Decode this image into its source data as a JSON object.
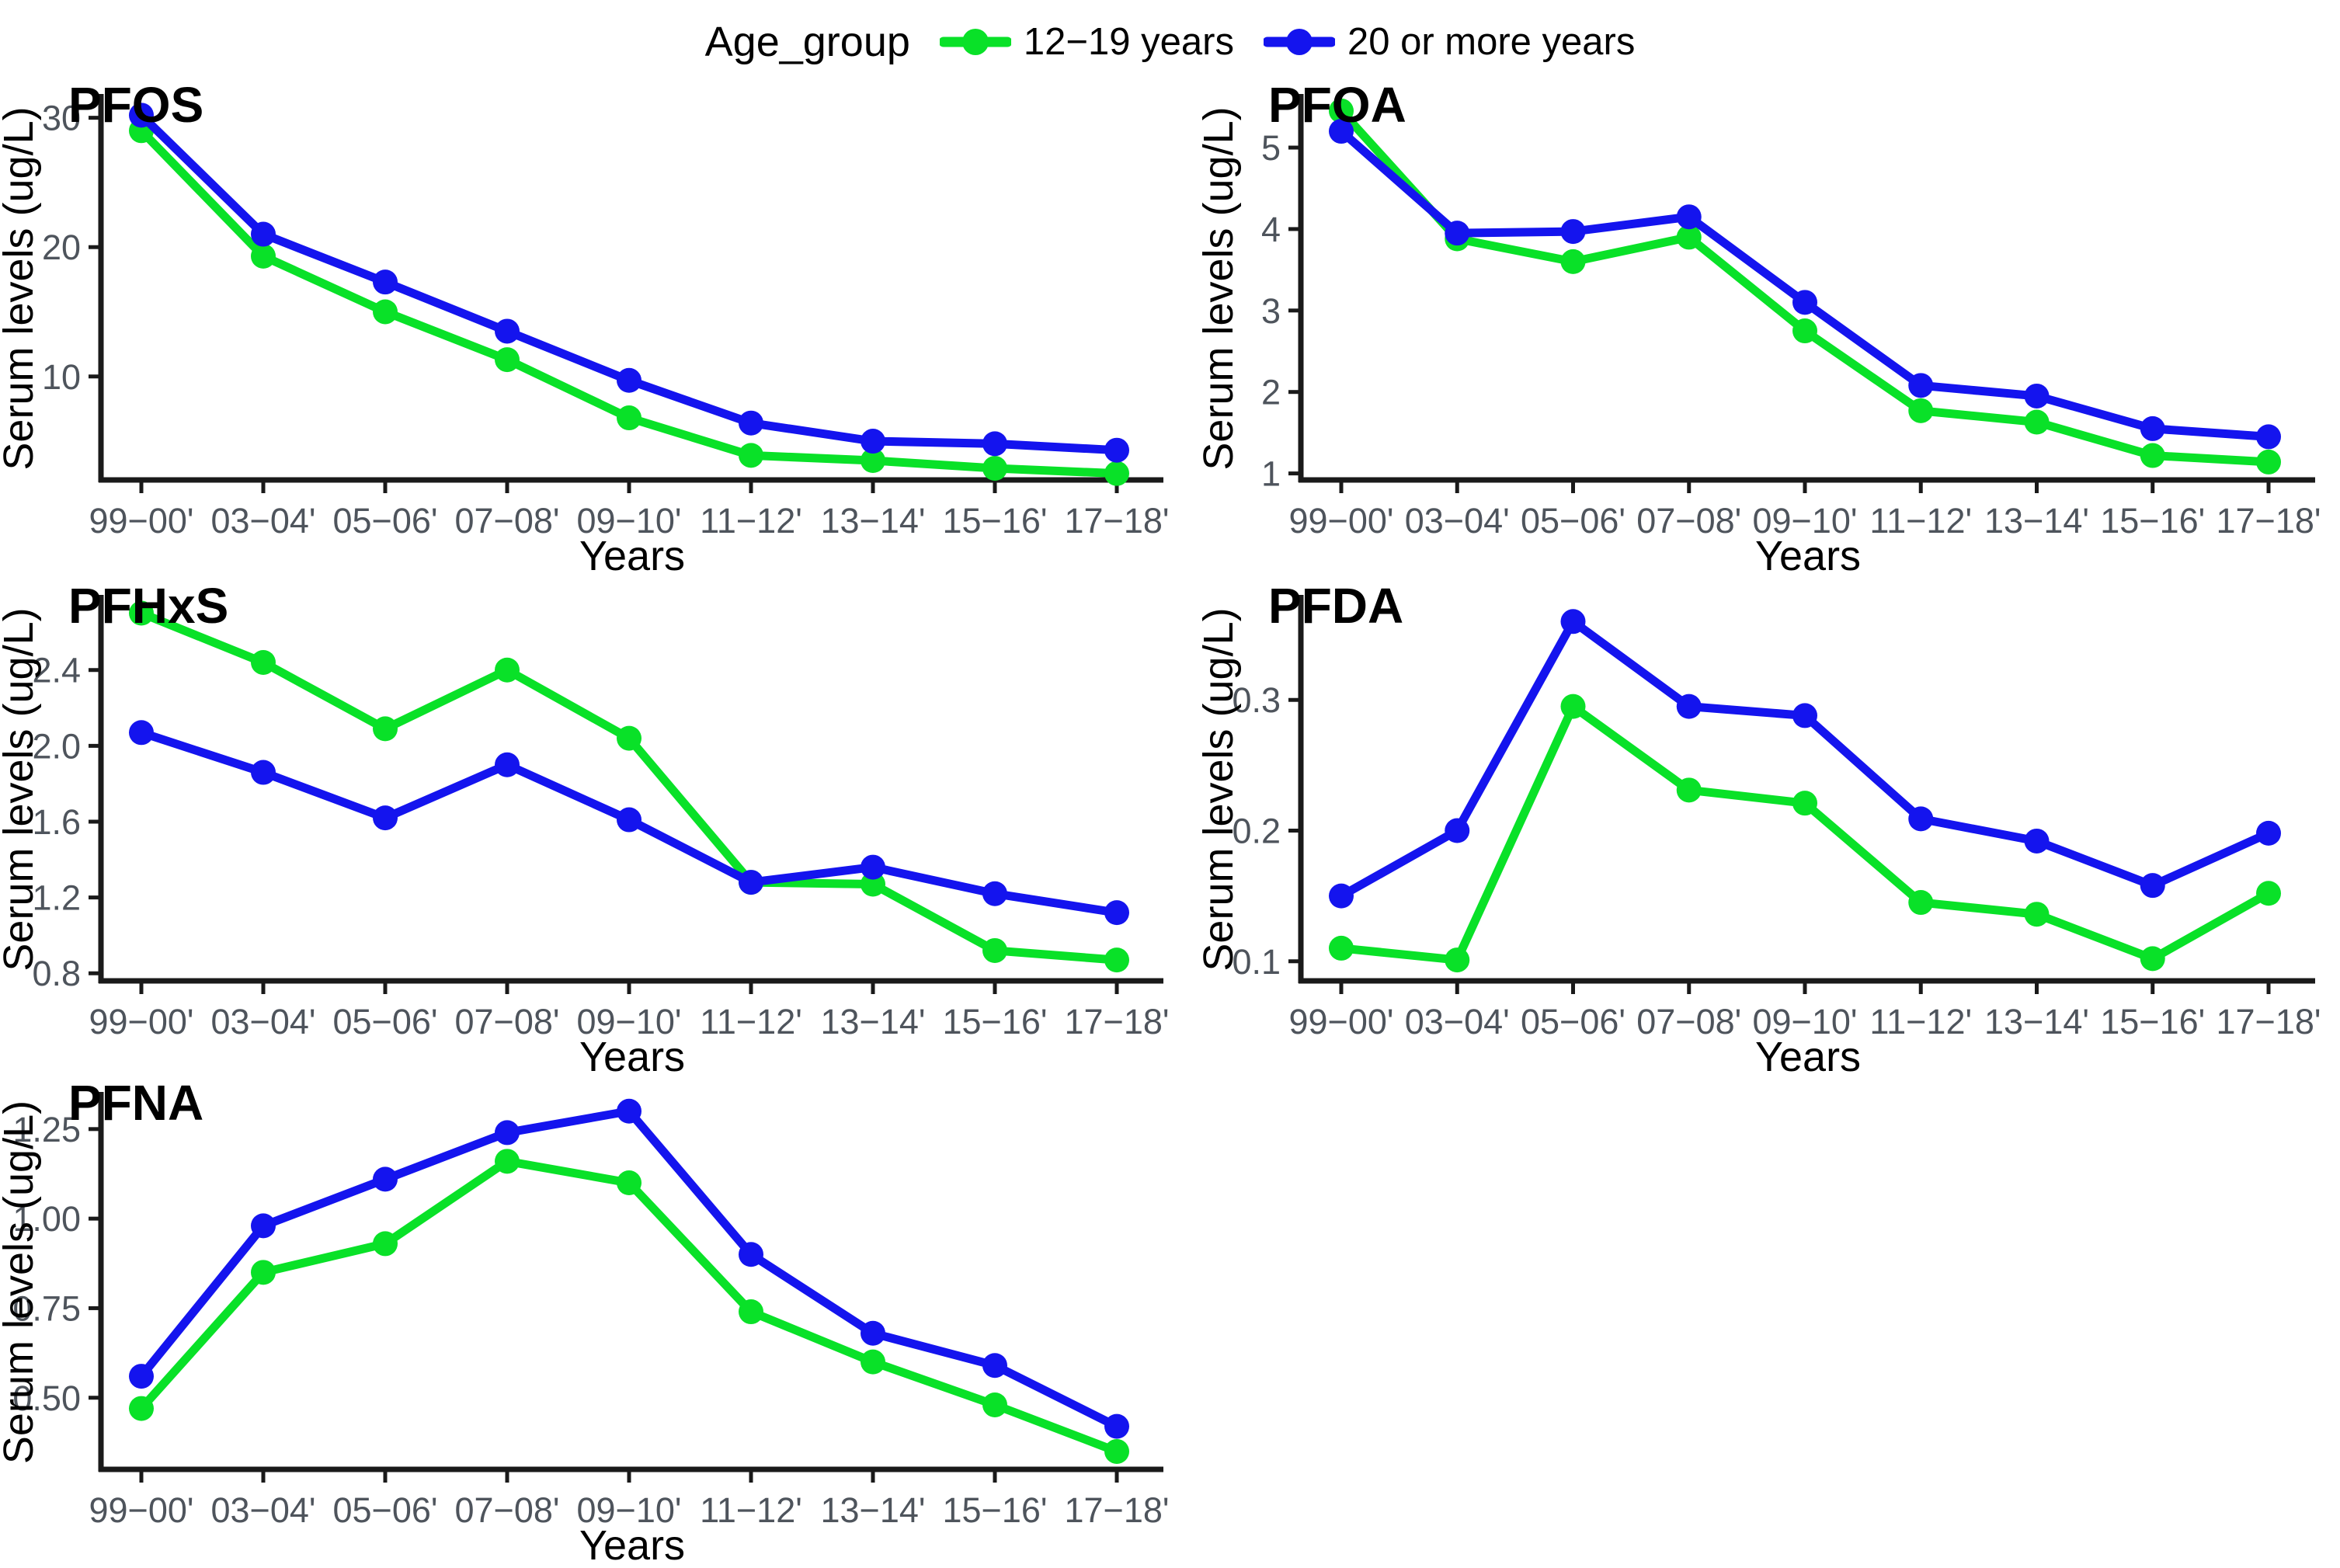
{
  "legend": {
    "title": "Age_group",
    "items": [
      {
        "label": "12−19 years",
        "color": "#09E128"
      },
      {
        "label": "20 or more years",
        "color": "#1414EE"
      }
    ]
  },
  "axis": {
    "x_label": "Years",
    "y_label": "Serum levels (ug/L)",
    "tick_color": "#4e545c",
    "axis_color": "#1a1a1a"
  },
  "chart_data": [
    {
      "type": "line",
      "title": "PFOS",
      "categories": [
        "99−00'",
        "03−04'",
        "05−06'",
        "07−08'",
        "09−10'",
        "11−12'",
        "13−14'",
        "15−16'",
        "17−18'"
      ],
      "xlabel": "Years",
      "ylabel": "Serum levels (ug/L)",
      "ylim": [
        2.0,
        31.6
      ],
      "yticks": [
        {
          "v": 10,
          "label": "10"
        },
        {
          "v": 20,
          "label": "20"
        },
        {
          "v": 30,
          "label": "30"
        }
      ],
      "grid": false,
      "series": [
        {
          "name": "12−19 years",
          "color": "#09E128",
          "values": [
            29.0,
            19.3,
            15.0,
            11.3,
            6.8,
            3.9,
            3.5,
            2.9,
            2.5
          ]
        },
        {
          "name": "20 or more years",
          "color": "#1414EE",
          "values": [
            30.2,
            21.0,
            17.3,
            13.5,
            9.7,
            6.4,
            5.0,
            4.8,
            4.3
          ]
        }
      ]
    },
    {
      "type": "line",
      "title": "PFOA",
      "categories": [
        "99−00'",
        "03−04'",
        "05−06'",
        "07−08'",
        "09−10'",
        "11−12'",
        "13−14'",
        "15−16'",
        "17−18'"
      ],
      "xlabel": "Years",
      "ylabel": "Serum levels (ug/L)",
      "ylim": [
        0.92,
        5.62
      ],
      "yticks": [
        {
          "v": 1,
          "label": "1"
        },
        {
          "v": 2,
          "label": "2"
        },
        {
          "v": 3,
          "label": "3"
        },
        {
          "v": 4,
          "label": "4"
        },
        {
          "v": 5,
          "label": "5"
        }
      ],
      "grid": false,
      "series": [
        {
          "name": "12−19 years",
          "color": "#09E128",
          "values": [
            5.45,
            3.88,
            3.6,
            3.9,
            2.75,
            1.77,
            1.63,
            1.22,
            1.14
          ]
        },
        {
          "name": "20 or more years",
          "color": "#1414EE",
          "values": [
            5.2,
            3.95,
            3.97,
            4.15,
            3.1,
            2.08,
            1.95,
            1.55,
            1.45
          ]
        }
      ]
    },
    {
      "type": "line",
      "title": "PFHxS",
      "categories": [
        "99−00'",
        "03−04'",
        "05−06'",
        "07−08'",
        "09−10'",
        "11−12'",
        "13−14'",
        "15−16'",
        "17−18'"
      ],
      "xlabel": "Years",
      "ylabel": "Serum levels (ug/L)",
      "ylim": [
        0.76,
        2.78
      ],
      "yticks": [
        {
          "v": 0.8,
          "label": "0.8"
        },
        {
          "v": 1.2,
          "label": "1.2"
        },
        {
          "v": 1.6,
          "label": "1.6"
        },
        {
          "v": 2.0,
          "label": "2.0"
        },
        {
          "v": 2.4,
          "label": "2.4"
        }
      ],
      "grid": false,
      "series": [
        {
          "name": "12−19 years",
          "color": "#09E128",
          "values": [
            2.7,
            2.44,
            2.09,
            2.4,
            2.04,
            1.28,
            1.27,
            0.92,
            0.87
          ]
        },
        {
          "name": "20 or more years",
          "color": "#1414EE",
          "values": [
            2.07,
            1.86,
            1.62,
            1.9,
            1.61,
            1.28,
            1.36,
            1.22,
            1.12
          ]
        }
      ]
    },
    {
      "type": "line",
      "title": "PFDA",
      "categories": [
        "99−00'",
        "03−04'",
        "05−06'",
        "07−08'",
        "09−10'",
        "11−12'",
        "13−14'",
        "15−16'",
        "17−18'"
      ],
      "xlabel": "Years",
      "ylabel": "Serum levels (ug/L)",
      "ylim": [
        0.085,
        0.378
      ],
      "yticks": [
        {
          "v": 0.1,
          "label": "0.1"
        },
        {
          "v": 0.2,
          "label": "0.2"
        },
        {
          "v": 0.3,
          "label": "0.3"
        }
      ],
      "grid": false,
      "series": [
        {
          "name": "12−19 years",
          "color": "#09E128",
          "values": [
            0.11,
            0.101,
            0.295,
            0.231,
            0.221,
            0.145,
            0.136,
            0.102,
            0.152
          ]
        },
        {
          "name": "20 or more years",
          "color": "#1414EE",
          "values": [
            0.15,
            0.2,
            0.36,
            0.295,
            0.288,
            0.209,
            0.192,
            0.158,
            0.198
          ]
        }
      ]
    },
    {
      "type": "line",
      "title": "PFNA",
      "categories": [
        "99−00'",
        "03−04'",
        "05−06'",
        "07−08'",
        "09−10'",
        "11−12'",
        "13−14'",
        "15−16'",
        "17−18'"
      ],
      "xlabel": "Years",
      "ylabel": "Serum levels (ug/L)",
      "ylim": [
        0.3,
        1.345
      ],
      "yticks": [
        {
          "v": 0.5,
          "label": "0.50"
        },
        {
          "v": 0.75,
          "label": "0.75"
        },
        {
          "v": 1.0,
          "label": "1.00"
        },
        {
          "v": 1.25,
          "label": "1.25"
        }
      ],
      "grid": false,
      "series": [
        {
          "name": "12−19 years",
          "color": "#09E128",
          "values": [
            0.47,
            0.85,
            0.93,
            1.16,
            1.1,
            0.74,
            0.6,
            0.48,
            0.35
          ]
        },
        {
          "name": "20 or more years",
          "color": "#1414EE",
          "values": [
            0.56,
            0.98,
            1.11,
            1.24,
            1.3,
            0.9,
            0.68,
            0.59,
            0.42
          ]
        }
      ]
    }
  ]
}
